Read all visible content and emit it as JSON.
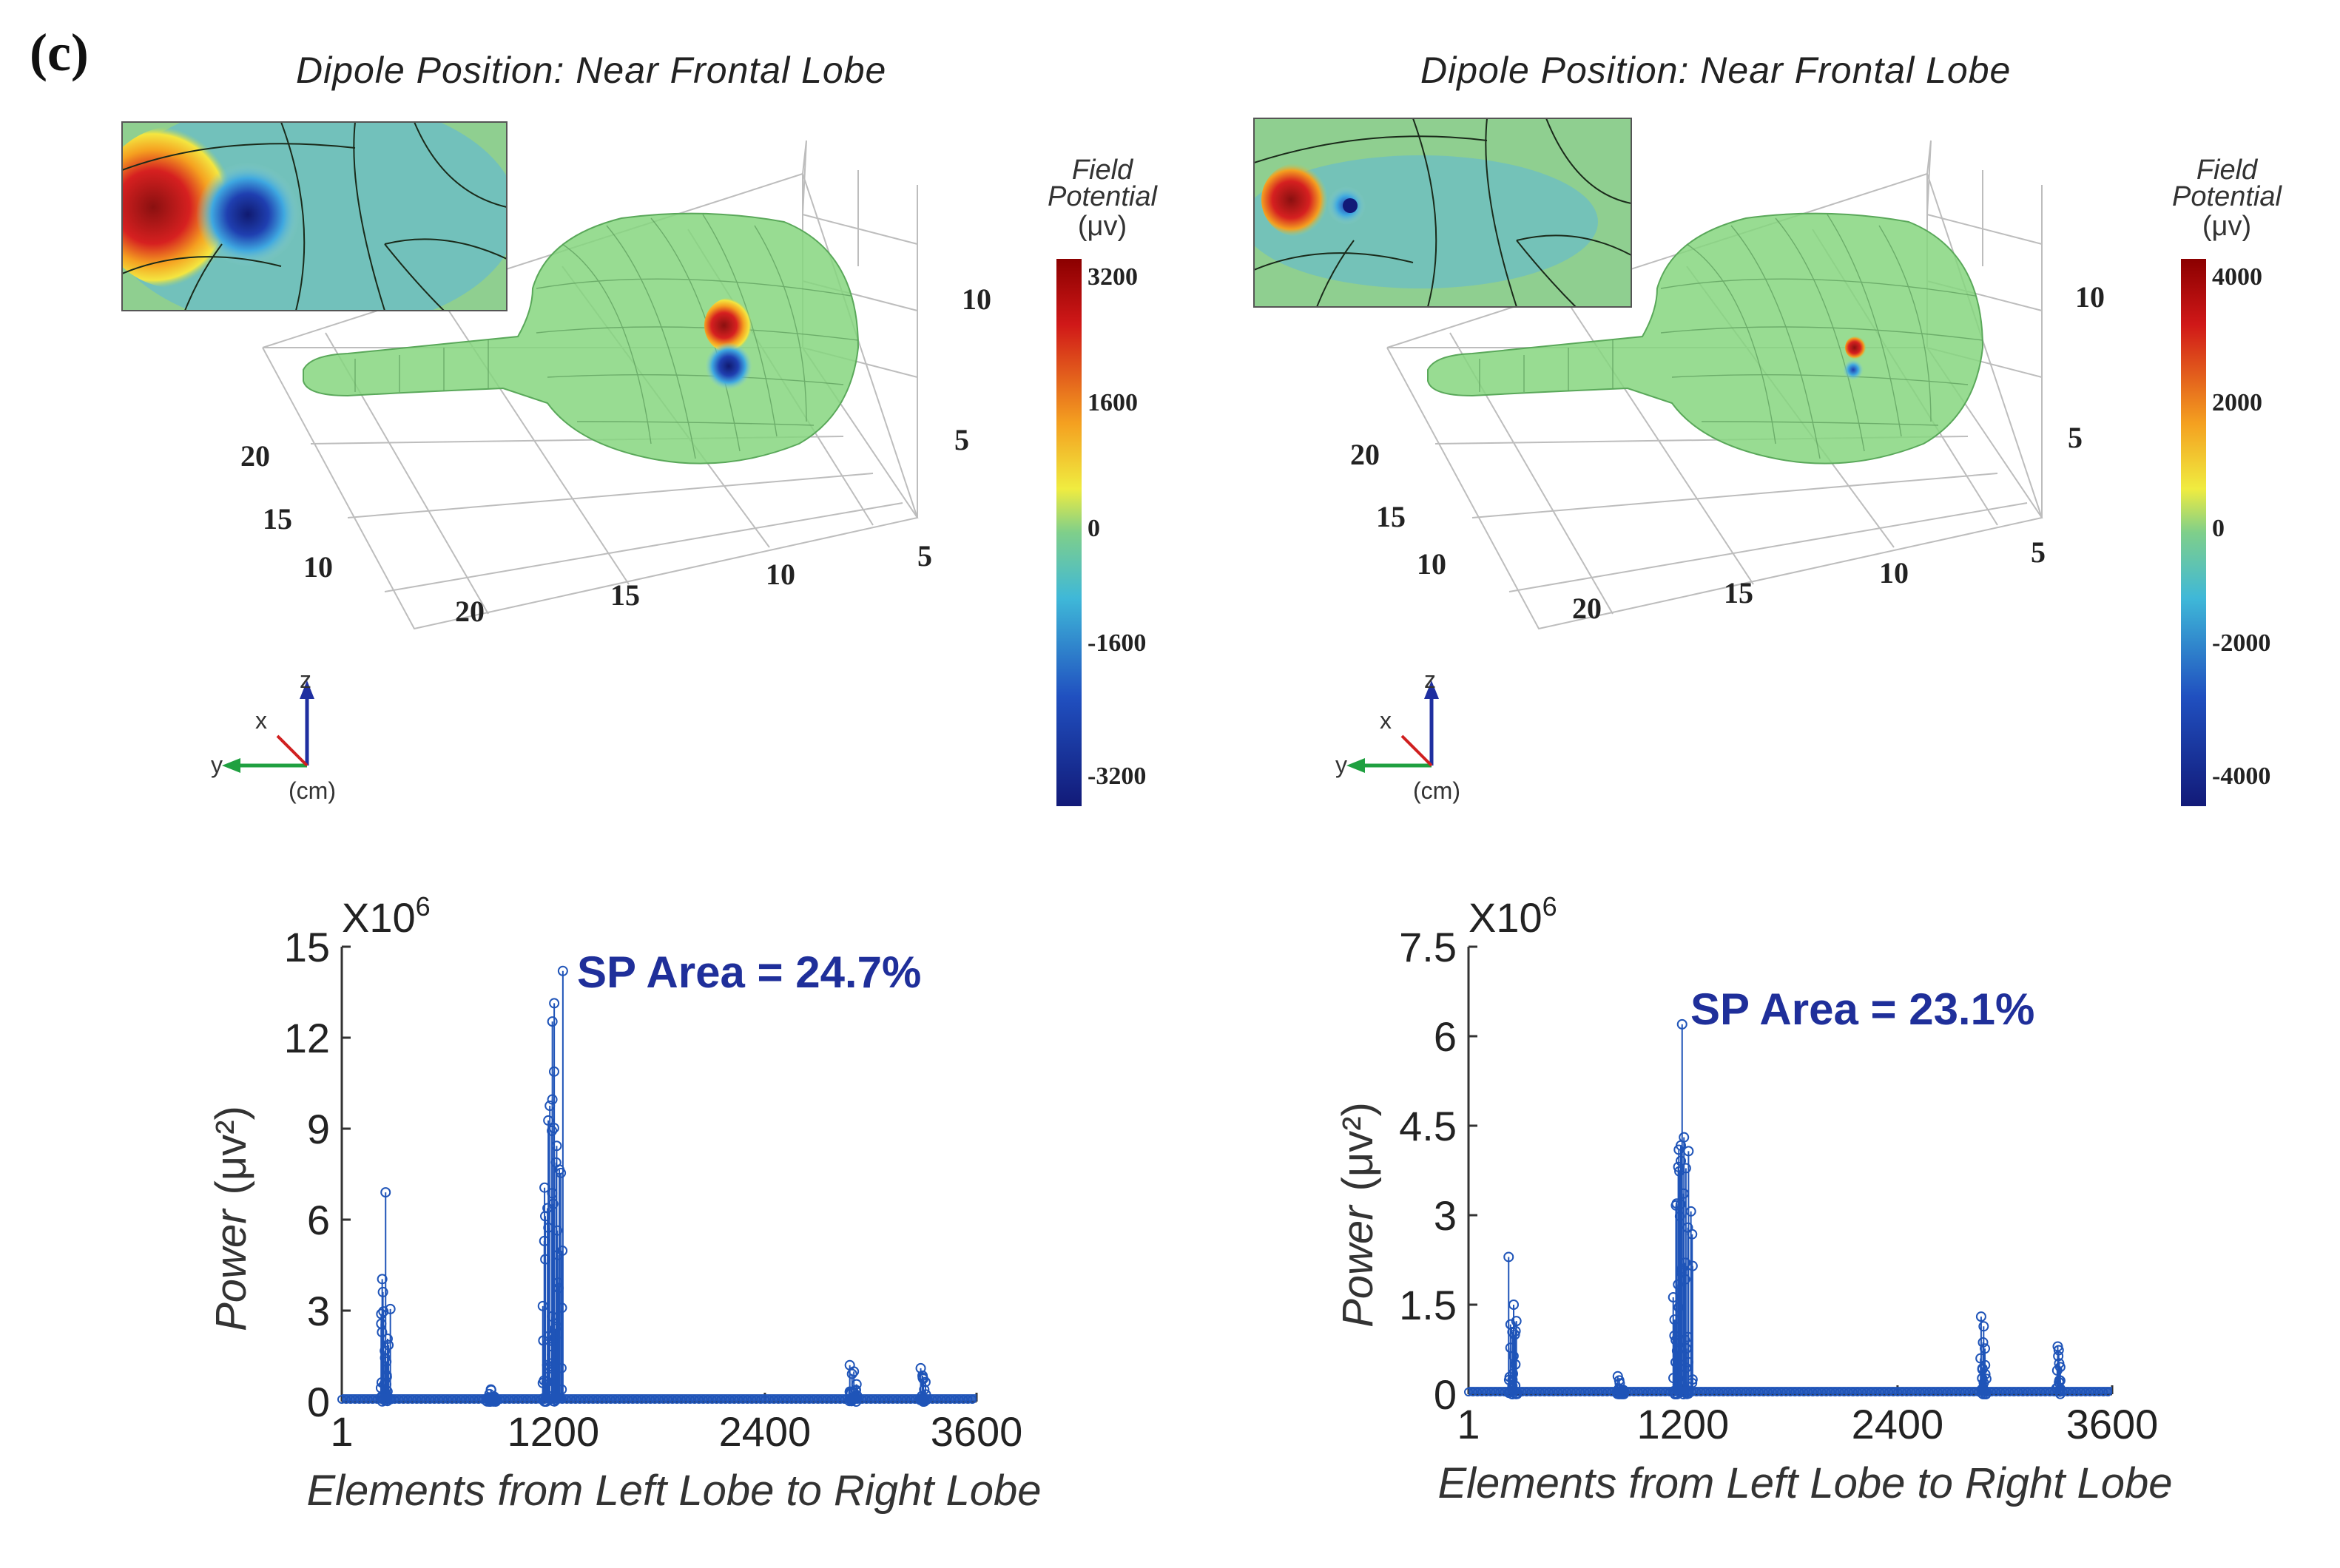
{
  "panel_label": "(c)",
  "colors": {
    "stem": "#1f54b8",
    "annot": "#1f2f9a",
    "brain": "#7fd67a",
    "grid": "#b8b8b8"
  },
  "head_plots": [
    {
      "title": "Dipole Position: Near Frontal Lobe",
      "colorbar": {
        "title_lines": [
          "Field",
          "Potential",
          "(μv)"
        ],
        "ticks": [
          "3200",
          "1600",
          "0",
          "-1600",
          "-3200"
        ]
      },
      "axis_ticks": {
        "a": [
          "20",
          "15",
          "10"
        ],
        "b": [
          "20",
          "15",
          "10",
          "5"
        ],
        "z": [
          "10",
          "5"
        ]
      },
      "orientation": {
        "x": "x",
        "y": "y",
        "z": "z",
        "unit": "(cm)"
      }
    },
    {
      "title": "Dipole Position: Near Frontal Lobe",
      "colorbar": {
        "title_lines": [
          "Field",
          "Potential",
          "(μv)"
        ],
        "ticks": [
          "4000",
          "2000",
          "0",
          "-2000",
          "-4000"
        ]
      },
      "axis_ticks": {
        "a": [
          "20",
          "15",
          "10"
        ],
        "b": [
          "20",
          "15",
          "10",
          "5"
        ],
        "z": [
          "10",
          "5"
        ]
      },
      "orientation": {
        "x": "x",
        "y": "y",
        "z": "z",
        "unit": "(cm)"
      }
    }
  ],
  "chart_data": [
    {
      "type": "stem",
      "title": "",
      "xlabel": "Elements from Left Lobe to Right Lobe",
      "ylabel": "Power",
      "ylabel_unit": "(μv²)",
      "y_multiplier": "X10",
      "y_multiplier_exp": "6",
      "xlim": [
        1,
        3600
      ],
      "ylim": [
        0,
        15
      ],
      "xticks": [
        1,
        1200,
        2400,
        3600
      ],
      "xtick_labels": [
        "1",
        "1200",
        "2400",
        "3600"
      ],
      "yticks": [
        0,
        3,
        6,
        9,
        12,
        15
      ],
      "ytick_labels": [
        "0",
        "3",
        "6",
        "9",
        "12",
        "15"
      ],
      "annotation": "SP Area = 24.7%",
      "clusters": [
        {
          "center": 250,
          "width": 60,
          "peak": 6.9
        },
        {
          "center": 1200,
          "width": 120,
          "peak": 14.2
        },
        {
          "center": 850,
          "width": 60,
          "peak": 0.4
        },
        {
          "center": 2900,
          "width": 50,
          "peak": 1.2
        },
        {
          "center": 3300,
          "width": 40,
          "peak": 1.1
        }
      ]
    },
    {
      "type": "stem",
      "title": "",
      "xlabel": "Elements from Left Lobe to Right Lobe",
      "ylabel": "Power",
      "ylabel_unit": "(μv²)",
      "y_multiplier": "X10",
      "y_multiplier_exp": "6",
      "xlim": [
        1,
        3600
      ],
      "ylim": [
        0,
        7.5
      ],
      "xticks": [
        1,
        1200,
        2400,
        3600
      ],
      "xtick_labels": [
        "1",
        "1200",
        "2400",
        "3600"
      ],
      "yticks": [
        0,
        1.5,
        3,
        4.5,
        6,
        7.5
      ],
      "ytick_labels": [
        "0",
        "1.5",
        "3",
        "4.5",
        "6",
        "7.5"
      ],
      "annotation": "SP Area = 23.1%",
      "clusters": [
        {
          "center": 250,
          "width": 50,
          "peak": 2.3
        },
        {
          "center": 1200,
          "width": 110,
          "peak": 6.2
        },
        {
          "center": 850,
          "width": 40,
          "peak": 0.3
        },
        {
          "center": 2880,
          "width": 40,
          "peak": 1.3
        },
        {
          "center": 3300,
          "width": 30,
          "peak": 0.8
        }
      ]
    }
  ]
}
